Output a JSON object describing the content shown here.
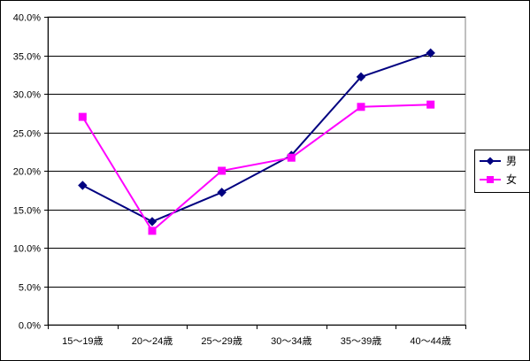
{
  "chart_data": {
    "type": "line",
    "title": "",
    "xlabel": "",
    "ylabel": "",
    "categories": [
      "15～19歳",
      "20～24歳",
      "25～29歳",
      "30～34歳",
      "35～39歳",
      "40～44歳"
    ],
    "y_ticks": [
      "0.0%",
      "5.0%",
      "10.0%",
      "15.0%",
      "20.0%",
      "25.0%",
      "30.0%",
      "35.0%",
      "40.0%"
    ],
    "ylim": [
      0,
      40
    ],
    "grid": true,
    "legend_position": "right",
    "series": [
      {
        "name": "男",
        "color": "#000080",
        "marker": "diamond",
        "values": [
          18.1,
          13.4,
          17.2,
          22.0,
          32.2,
          35.3
        ]
      },
      {
        "name": "女",
        "color": "#FF00FF",
        "marker": "square",
        "values": [
          27.0,
          12.2,
          20.0,
          21.7,
          28.3,
          28.6
        ]
      }
    ]
  }
}
